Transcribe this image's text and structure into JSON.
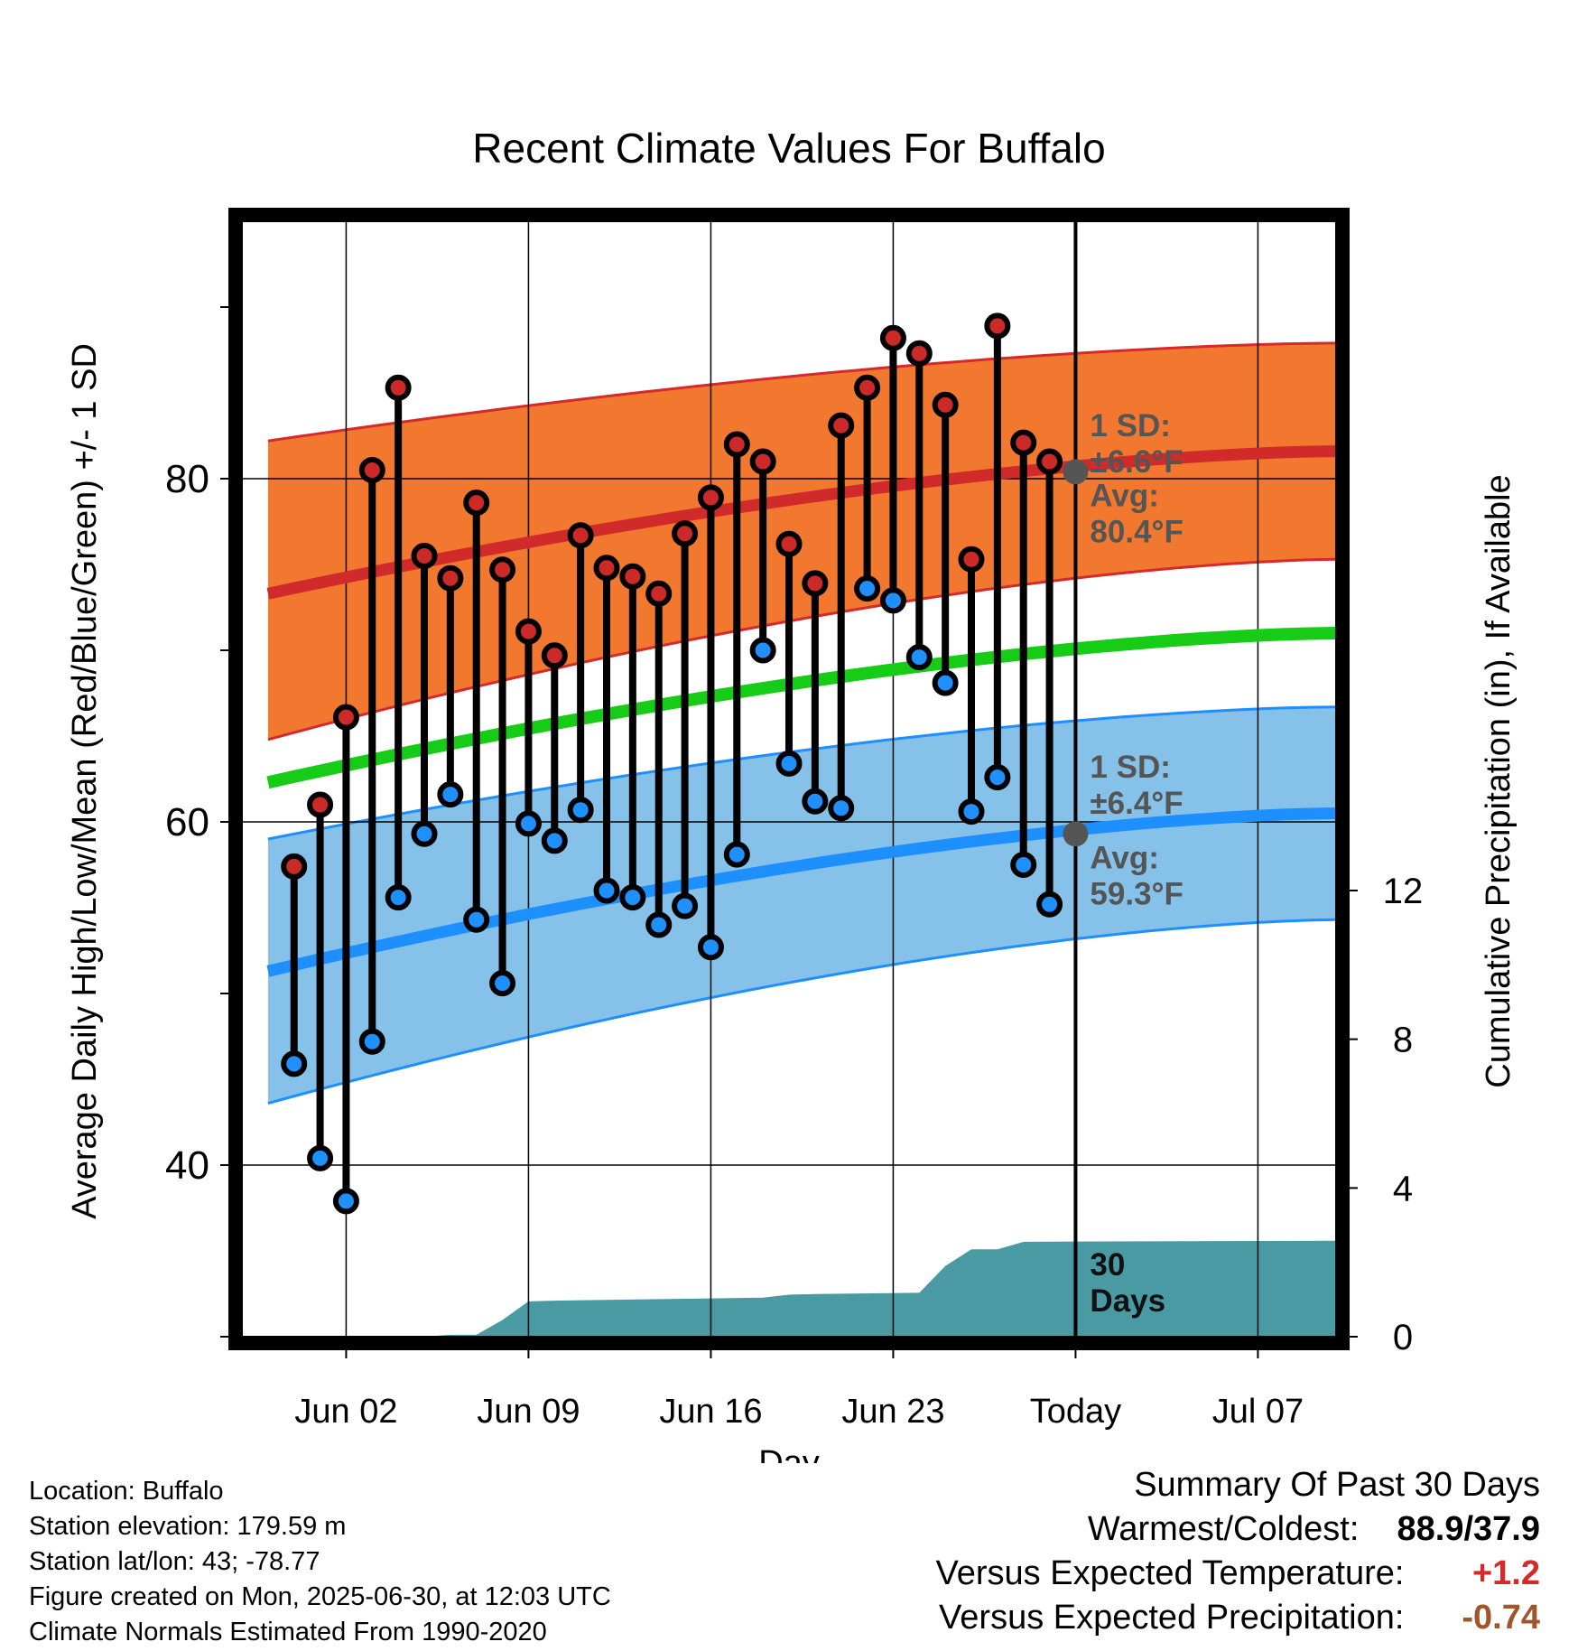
{
  "chart_data": {
    "type": "line",
    "title": "Recent Climate Values For Buffalo",
    "xlabel": "Day",
    "ylabel": "Average Daily High/Low/Mean (Red/Blue/Green) +/- 1 SD",
    "y2label": "Cumulative Precipitation (in), If Available",
    "xlim": [
      "2025-05-29",
      "2025-07-10"
    ],
    "ylim": [
      30,
      95
    ],
    "y2lim": [
      0,
      30
    ],
    "x_ticks": [
      {
        "date": "2025-06-02",
        "label": "Jun 02"
      },
      {
        "date": "2025-06-09",
        "label": "Jun 09"
      },
      {
        "date": "2025-06-16",
        "label": "Jun 16"
      },
      {
        "date": "2025-06-23",
        "label": "Jun 23"
      },
      {
        "date": "2025-06-30",
        "label": "Today"
      },
      {
        "date": "2025-07-07",
        "label": "Jul 07"
      }
    ],
    "y_ticks": [
      40,
      60,
      80
    ],
    "y_minor_ticks": [
      30,
      50,
      70,
      90
    ],
    "y2_ticks": [
      0,
      4,
      8,
      12
    ],
    "grid": true,
    "today": "2025-06-30",
    "dates": [
      "2025-05-31",
      "2025-06-01",
      "2025-06-02",
      "2025-06-03",
      "2025-06-04",
      "2025-06-05",
      "2025-06-06",
      "2025-06-07",
      "2025-06-08",
      "2025-06-09",
      "2025-06-10",
      "2025-06-11",
      "2025-06-12",
      "2025-06-13",
      "2025-06-14",
      "2025-06-15",
      "2025-06-16",
      "2025-06-17",
      "2025-06-18",
      "2025-06-19",
      "2025-06-20",
      "2025-06-21",
      "2025-06-22",
      "2025-06-23",
      "2025-06-24",
      "2025-06-25",
      "2025-06-26",
      "2025-06-27",
      "2025-06-28",
      "2025-06-29"
    ],
    "series": [
      {
        "name": "High",
        "values": [
          57.4,
          61.0,
          66.1,
          80.5,
          85.3,
          75.5,
          74.2,
          78.6,
          74.7,
          71.1,
          69.7,
          76.7,
          74.8,
          74.3,
          73.3,
          76.8,
          78.9,
          82.0,
          81.0,
          76.2,
          73.9,
          83.1,
          85.3,
          88.2,
          87.3,
          84.3,
          75.3,
          88.9,
          82.1,
          81.0
        ]
      },
      {
        "name": "Low",
        "values": [
          45.9,
          40.4,
          37.9,
          47.2,
          55.6,
          59.3,
          61.6,
          54.3,
          50.6,
          59.9,
          58.9,
          60.7,
          56.0,
          55.6,
          54.0,
          55.1,
          52.7,
          58.1,
          70.0,
          63.4,
          61.2,
          60.8,
          73.6,
          72.9,
          69.6,
          68.1,
          60.6,
          62.6,
          57.5,
          55.2
        ]
      }
    ],
    "normals": {
      "dates": [
        "2025-05-30",
        "2025-07-10"
      ],
      "high_avg": [
        73.3,
        81.6
      ],
      "high_upper": [
        82.2,
        87.9
      ],
      "high_lower": [
        64.8,
        75.3
      ],
      "mean_avg": [
        62.3,
        71.0
      ],
      "low_avg": [
        51.3,
        60.5
      ],
      "low_upper": [
        59.0,
        66.7
      ],
      "low_lower": [
        43.6,
        54.3
      ]
    },
    "precipitation": {
      "dates": [
        "2025-05-30",
        "2025-06-05",
        "2025-06-06",
        "2025-06-07",
        "2025-06-08",
        "2025-06-09",
        "2025-06-10",
        "2025-06-15",
        "2025-06-18",
        "2025-06-19",
        "2025-06-20",
        "2025-06-24",
        "2025-06-25",
        "2025-06-26",
        "2025-06-27",
        "2025-06-28",
        "2025-06-30",
        "2025-07-10"
      ],
      "cumulative": [
        0.0,
        0.0,
        0.05,
        0.05,
        0.45,
        0.95,
        0.97,
        1.02,
        1.05,
        1.13,
        1.15,
        1.18,
        1.9,
        2.35,
        2.35,
        2.55,
        2.56,
        2.58
      ]
    },
    "annotations": {
      "high_sd": {
        "line1": "1 SD:",
        "line2": "±6.6°F",
        "y": 83.1
      },
      "high_avg": {
        "line1": "Avg:",
        "line2": "80.4°F",
        "y": 80.4
      },
      "low_sd": {
        "line1": "1 SD:",
        "line2": "±6.4°F",
        "y": 63.2
      },
      "low_avg": {
        "line1": "Avg:",
        "line2": "59.3°F",
        "y": 59.3
      },
      "days": {
        "line1": "30",
        "line2": "Days"
      }
    },
    "colors": {
      "high_band": "#f27830",
      "high_band_edge": "#d62a2a",
      "high_avg": "#d12a2a",
      "mean": "#17cc17",
      "low_band": "#85c1e8",
      "low_band_edge": "#1e8fff",
      "low_avg": "#1e8fff",
      "precip": "#4a9aa3",
      "high_dot": "#cc2929",
      "low_dot": "#1e90ff",
      "annotation": "#555555",
      "today_dot": "#555555"
    }
  },
  "footer": {
    "location": "Location: Buffalo",
    "elevation": "Station elevation: 179.59 m",
    "latlon": "Station lat/lon: 43; -78.77",
    "created": "Figure created on Mon, 2025-06-30, at 12:03 UTC",
    "normals": "Climate Normals Estimated From 1990-2020"
  },
  "summary": {
    "heading": "Summary Of Past 30 Days",
    "warmest_label": "Warmest/Coldest:",
    "warmest_value": "88.9/37.9",
    "temp_label": "Versus Expected Temperature:",
    "temp_value": "+1.2",
    "temp_color": "#d62a2a",
    "precip_label": "Versus Expected Precipitation:",
    "precip_value": "-0.74",
    "precip_color": "#a0552a"
  }
}
